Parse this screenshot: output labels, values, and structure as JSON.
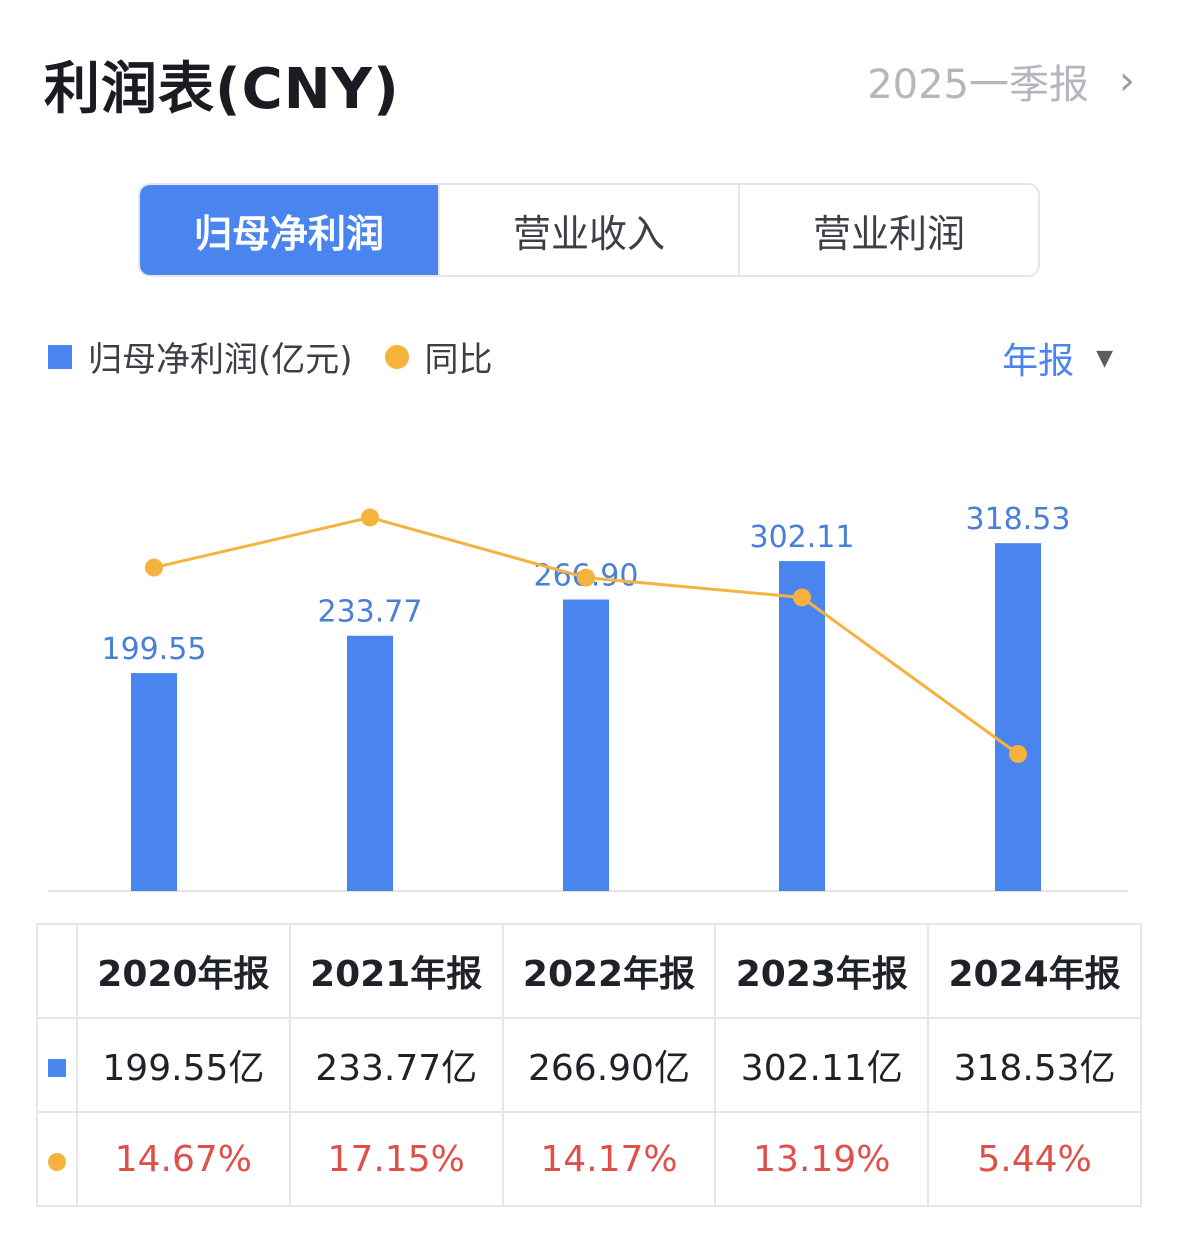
{
  "header": {
    "title": "利润表(CNY)",
    "period": "2025一季报"
  },
  "tabs": [
    {
      "label": "归母净利润",
      "active": true
    },
    {
      "label": "营业收入",
      "active": false
    },
    {
      "label": "营业利润",
      "active": false
    }
  ],
  "legend": {
    "bar_label": "归母净利润(亿元)",
    "line_label": "同比"
  },
  "mode": {
    "label": "年报"
  },
  "colors": {
    "bar": "#4a84ee",
    "line": "#f5b33d",
    "negative_text": "#e0504a"
  },
  "chart_data": {
    "type": "bar",
    "categories": [
      "2020年报",
      "2021年报",
      "2022年报",
      "2023年报",
      "2024年报"
    ],
    "series": [
      {
        "name": "归母净利润(亿元)",
        "type": "bar",
        "values": [
          199.55,
          233.77,
          266.9,
          302.11,
          318.53
        ],
        "labels": [
          "199.55",
          "233.77",
          "266.90",
          "302.11",
          "318.53"
        ]
      },
      {
        "name": "同比",
        "type": "line",
        "values": [
          14.67,
          17.15,
          14.17,
          13.19,
          5.44
        ]
      }
    ],
    "ylim": [
      0,
      340
    ]
  },
  "table": {
    "headers": [
      "2020年报",
      "2021年报",
      "2022年报",
      "2023年报",
      "2024年报"
    ],
    "values": [
      "199.55亿",
      "233.77亿",
      "266.90亿",
      "302.11亿",
      "318.53亿"
    ],
    "yoy": [
      "14.67%",
      "17.15%",
      "14.17%",
      "13.19%",
      "5.44%"
    ]
  }
}
